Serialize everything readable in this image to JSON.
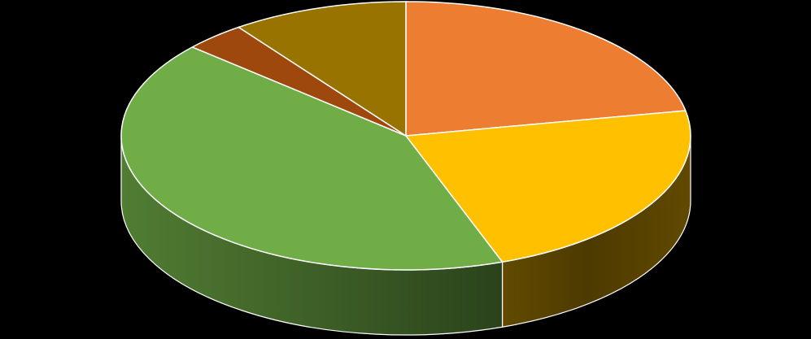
{
  "chart_data": {
    "type": "pie",
    "style": "3d",
    "title": "",
    "background": "#000000",
    "slice_border_color": "#ffffff",
    "start_angle_deg": 0,
    "direction": "clockwise",
    "slices": [
      {
        "value": 22.0,
        "color": "#ed7d31"
      },
      {
        "value": 22.5,
        "color": "#ffc000"
      },
      {
        "value": 42.0,
        "color": "#70ad47"
      },
      {
        "value": 3.5,
        "color": "#9e480e"
      },
      {
        "value": 10.0,
        "color": "#997300"
      }
    ]
  }
}
